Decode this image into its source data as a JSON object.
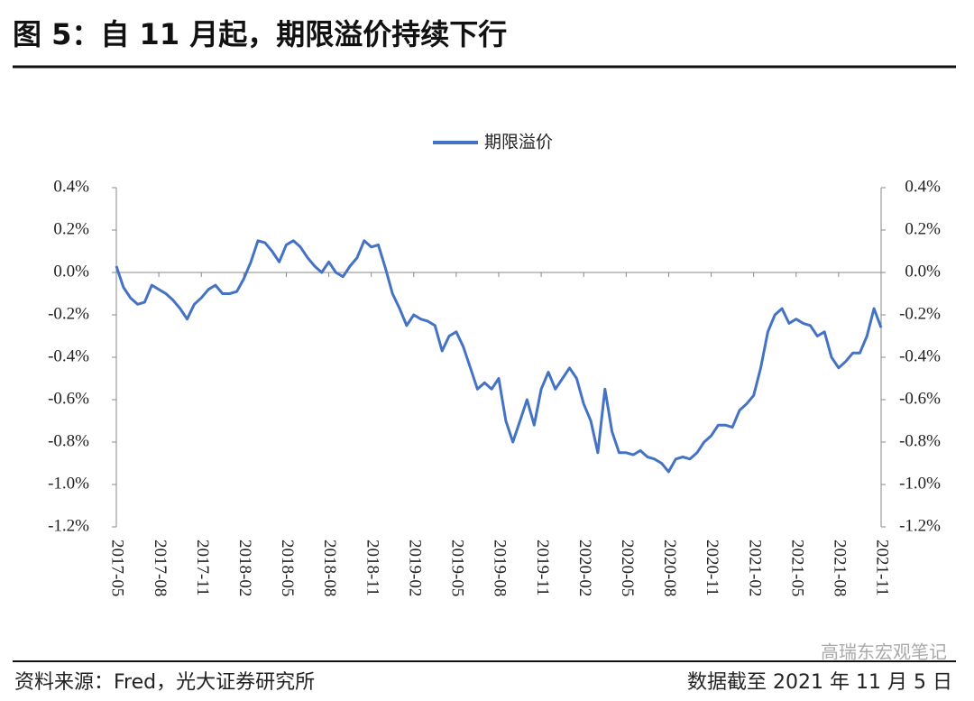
{
  "header": {
    "title": "图 5：自 11 月起，期限溢价持续下行"
  },
  "footer": {
    "source": "资料来源：Fred，光大证券研究所",
    "note": "数据截至 2021 年 11 月 5 日"
  },
  "watermark": "高瑞东宏观笔记",
  "chart_data": {
    "type": "line",
    "categories": [
      "2017-05",
      null,
      null,
      null,
      null,
      null,
      "2017-08",
      null,
      null,
      null,
      null,
      null,
      "2017-11",
      null,
      null,
      null,
      null,
      null,
      "2018-02",
      null,
      null,
      null,
      null,
      null,
      "2018-05",
      null,
      null,
      null,
      null,
      null,
      "2018-08",
      null,
      null,
      null,
      null,
      null,
      "2018-11",
      null,
      null,
      null,
      null,
      null,
      "2019-02",
      null,
      null,
      null,
      null,
      null,
      "2019-05",
      null,
      null,
      null,
      null,
      null,
      "2019-08",
      null,
      null,
      null,
      null,
      null,
      "2019-11",
      null,
      null,
      null,
      null,
      null,
      "2020-02",
      null,
      null,
      null,
      null,
      null,
      "2020-05",
      null,
      null,
      null,
      null,
      null,
      "2020-08",
      null,
      null,
      null,
      null,
      null,
      "2020-11",
      null,
      null,
      null,
      null,
      null,
      "2021-02",
      null,
      null,
      null,
      null,
      null,
      "2021-05",
      null,
      null,
      null,
      null,
      null,
      "2021-08",
      null,
      null,
      null,
      null,
      null,
      "2021-11"
    ],
    "series": [
      {
        "name": "期限溢价",
        "color": "#4472c4",
        "values": [
          0.03,
          -0.07,
          -0.12,
          -0.15,
          -0.14,
          -0.06,
          -0.08,
          -0.1,
          -0.13,
          -0.17,
          -0.22,
          -0.15,
          -0.12,
          -0.08,
          -0.06,
          -0.1,
          -0.1,
          -0.09,
          -0.03,
          0.05,
          0.15,
          0.14,
          0.1,
          0.05,
          0.13,
          0.15,
          0.12,
          0.07,
          0.03,
          0.0,
          0.05,
          0.0,
          -0.02,
          0.03,
          0.07,
          0.15,
          0.12,
          0.13,
          0.02,
          -0.1,
          -0.17,
          -0.25,
          -0.2,
          -0.22,
          -0.23,
          -0.25,
          -0.37,
          -0.3,
          -0.28,
          -0.35,
          -0.45,
          -0.55,
          -0.52,
          -0.55,
          -0.5,
          -0.7,
          -0.8,
          -0.7,
          -0.6,
          -0.72,
          -0.55,
          -0.47,
          -0.55,
          -0.5,
          -0.45,
          -0.5,
          -0.62,
          -0.7,
          -0.85,
          -0.55,
          -0.75,
          -0.85,
          -0.85,
          -0.86,
          -0.84,
          -0.87,
          -0.88,
          -0.9,
          -0.94,
          -0.88,
          -0.87,
          -0.88,
          -0.85,
          -0.8,
          -0.77,
          -0.72,
          -0.72,
          -0.73,
          -0.65,
          -0.62,
          -0.58,
          -0.45,
          -0.28,
          -0.2,
          -0.17,
          -0.24,
          -0.22,
          -0.24,
          -0.25,
          -0.3,
          -0.28,
          -0.4,
          -0.45,
          -0.42,
          -0.38,
          -0.38,
          -0.3,
          -0.17,
          -0.26
        ]
      }
    ],
    "ylim": [
      -1.2,
      0.4
    ],
    "yticks": [
      {
        "value": 0.4,
        "label": "0.4%"
      },
      {
        "value": 0.2,
        "label": "0.2%"
      },
      {
        "value": 0,
        "label": "0.0%"
      },
      {
        "value": -0.2,
        "label": "-0.2%"
      },
      {
        "value": -0.4,
        "label": "-0.4%"
      },
      {
        "value": -0.6,
        "label": "-0.6%"
      },
      {
        "value": -0.8,
        "label": "-0.8%"
      },
      {
        "value": -1.0,
        "label": "-1.0%"
      },
      {
        "value": -1.2,
        "label": "-1.2%"
      }
    ],
    "y2lim": [
      -1.2,
      0.4
    ],
    "y2ticks": [
      {
        "value": 0.4,
        "label": "0.4%"
      },
      {
        "value": 0.2,
        "label": "0.2%"
      },
      {
        "value": 0,
        "label": "0.0%"
      },
      {
        "value": -0.2,
        "label": "-0.2%"
      },
      {
        "value": -0.4,
        "label": "-0.4%"
      },
      {
        "value": -0.6,
        "label": "-0.6%"
      },
      {
        "value": -0.8,
        "label": "-0.8%"
      },
      {
        "value": -1.0,
        "label": "-1.0%"
      },
      {
        "value": -1.2,
        "label": "-1.2%"
      }
    ],
    "legend": "top"
  }
}
